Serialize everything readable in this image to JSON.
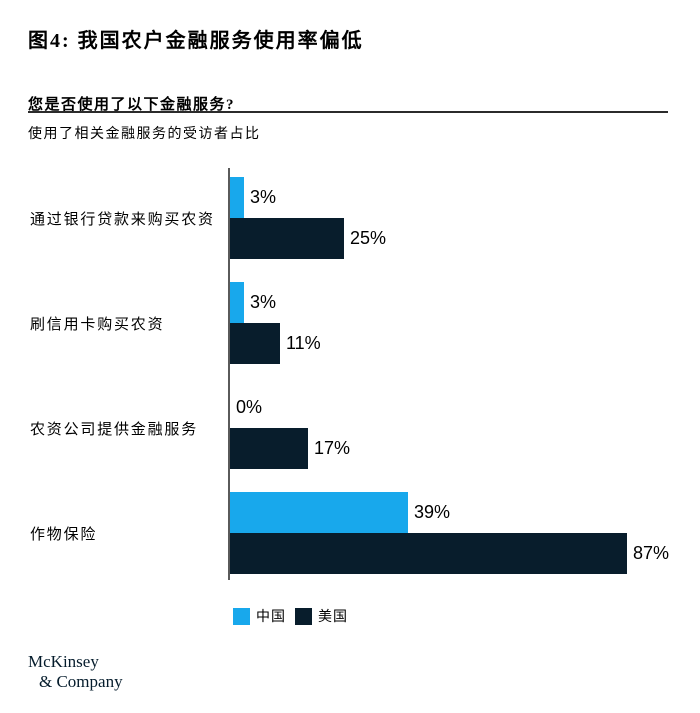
{
  "header": {
    "figure_title": "图4: 我国农户金融服务使用率偏低",
    "question": "您是否使用了以下金融服务?",
    "description": "使用了相关金融服务的受访者占比"
  },
  "chart_data": {
    "type": "bar",
    "orientation": "horizontal",
    "categories": [
      "通过银行贷款来购买农资",
      "刷信用卡购买农资",
      "农资公司提供金融服务",
      "作物保险"
    ],
    "series": [
      {
        "name": "中国",
        "color": "#18a8ec",
        "values": [
          3,
          3,
          0,
          39
        ]
      },
      {
        "name": "美国",
        "color": "#081d2c",
        "values": [
          25,
          11,
          17,
          87
        ]
      }
    ],
    "value_suffix": "%",
    "xlim": [
      0,
      100
    ],
    "grid": false,
    "legend_position": "bottom",
    "title": "图4: 我国农户金融服务使用率偏低",
    "subtitle": "您是否使用了以下金融服务?",
    "ylabel": "",
    "xlabel": "使用了相关金融服务的受访者占比"
  },
  "footer": {
    "logo_line1": "McKinsey",
    "logo_line2": "& Company"
  }
}
